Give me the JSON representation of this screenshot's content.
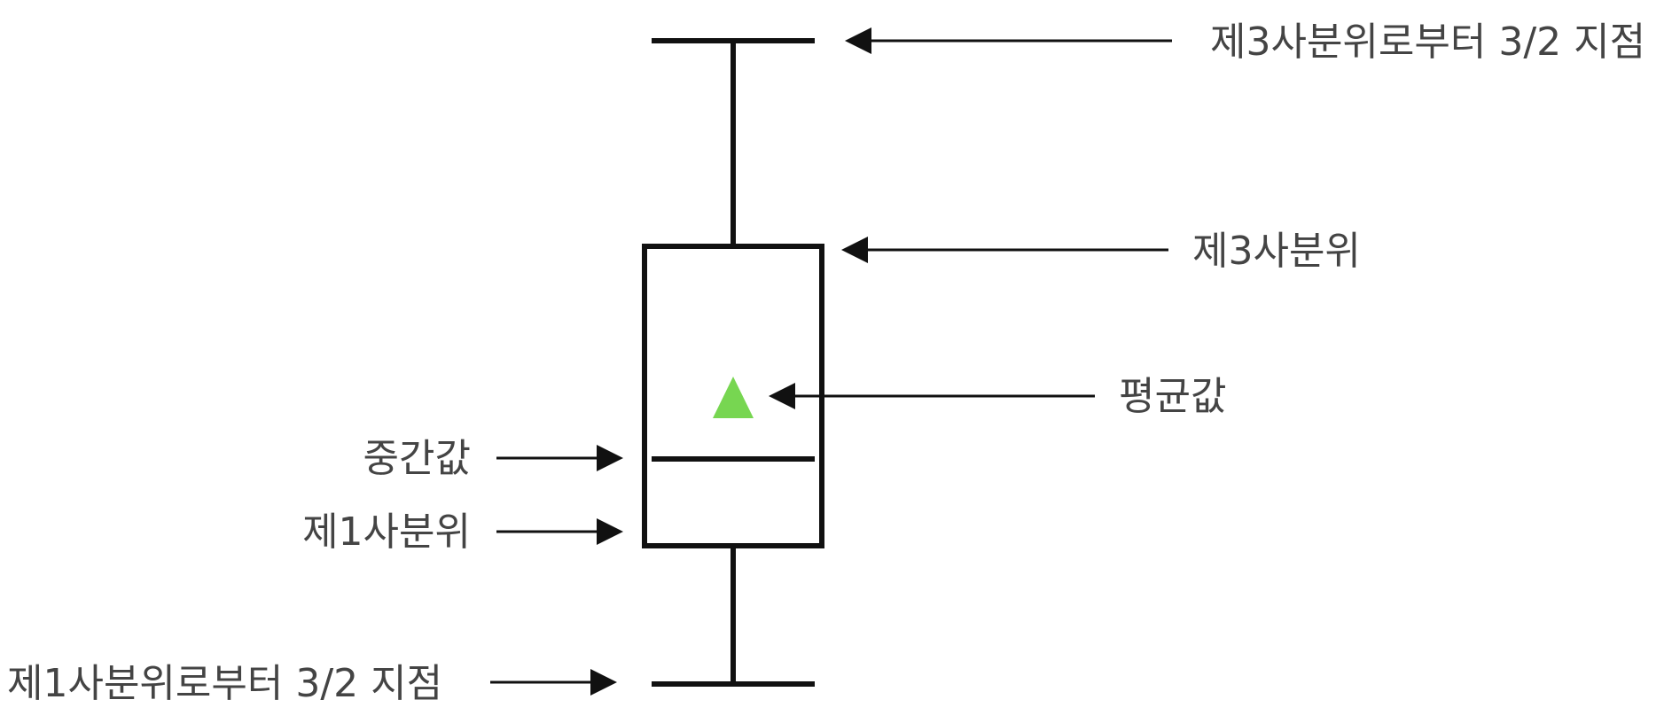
{
  "labels": {
    "upper_whisker": "제3사분위로부터 3/2 지점",
    "q3": "제3사분위",
    "mean": "평균값",
    "median": "중간값",
    "q1": "제1사분위",
    "lower_whisker": "제1사분위로부터 3/2 지점"
  },
  "colors": {
    "stroke": "#111111",
    "label_text": "#444444",
    "mean_marker": "#77d651"
  },
  "icons": {
    "mean_marker": "triangle-up"
  }
}
